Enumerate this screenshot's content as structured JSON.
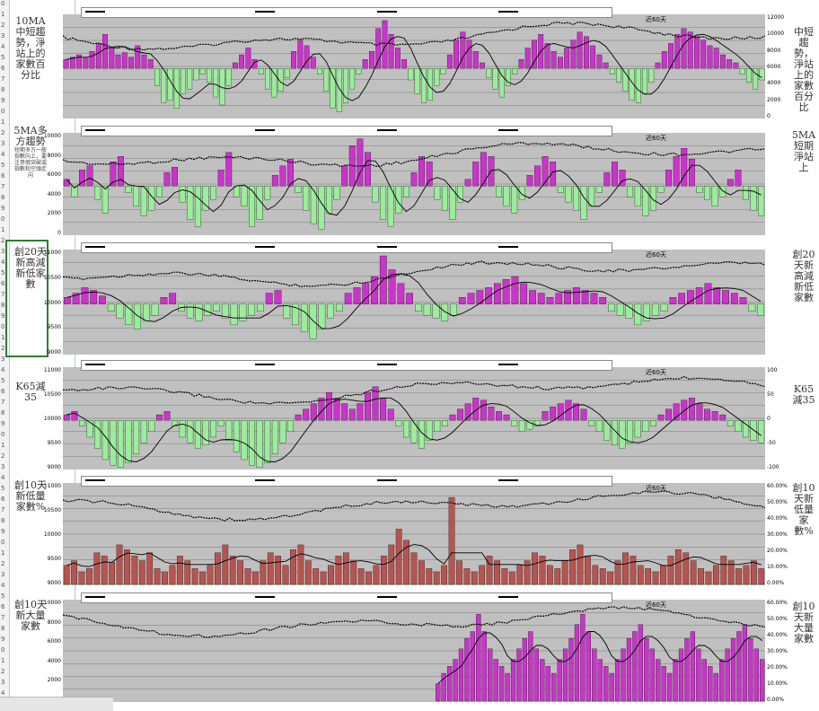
{
  "left_labels": [
    {
      "main": "10MA中短趨勢，淨站上的家數百分比",
      "sub": ""
    },
    {
      "main": "5MA多方趨勢",
      "sub": "短期多方一般指數向上，要注意假突破或指數和空頭走向"
    },
    {
      "main": "創20天新高減新低家數",
      "sub": ""
    },
    {
      "main": "K65減35",
      "sub": ""
    },
    {
      "main": "創10天新低量家數%",
      "sub": ""
    },
    {
      "main": "創10天新大量家數",
      "sub": ""
    }
  ],
  "right_labels": [
    "中短趨勢，淨站上的家數百分比",
    "5MA短期淨站上",
    "創20天新高減新低家數",
    "K65減35",
    "創10天新低量家數%",
    "創10天新大量家數"
  ],
  "period_label": "近60天",
  "chart_data": [
    {
      "type": "bar",
      "title": "",
      "series": [
        {
          "name": "",
          "color": "#cc33cc",
          "negative_color": "#99ee99",
          "values": [
            8,
            10,
            12,
            9,
            15,
            22,
            30,
            18,
            12,
            14,
            10,
            20,
            12,
            8,
            -15,
            -30,
            -28,
            -35,
            -22,
            -18,
            -10,
            -5,
            -12,
            -25,
            -32,
            -15,
            5,
            12,
            18,
            8,
            -5,
            -18,
            -25,
            -20,
            -8,
            15,
            25,
            20,
            10,
            -5,
            -20,
            -35,
            -38,
            -30,
            -18,
            -5,
            8,
            15,
            35,
            42,
            30,
            18,
            8,
            -10,
            -22,
            -30,
            -28,
            -15,
            -5,
            12,
            25,
            32,
            25,
            15,
            5,
            -8,
            -18,
            -25,
            -15,
            -5,
            8,
            18,
            25,
            30,
            22,
            15,
            10,
            18,
            25,
            32,
            28,
            20,
            12,
            5,
            -5,
            -12,
            -20,
            -28,
            -30,
            -22,
            -12,
            5,
            15,
            22,
            30,
            35,
            32,
            28,
            25,
            20,
            18,
            12,
            8,
            5,
            -5,
            -12,
            -18,
            -10
          ]
        }
      ],
      "lines": [
        "ma_fast",
        "ma_slow",
        "index"
      ],
      "ylim_left": [
        0,
        12000
      ],
      "ylim_right": [
        -50,
        50
      ],
      "left_ticks": [],
      "right_ticks": [
        "12000",
        "10000",
        "8000",
        "6000",
        "4000",
        "2000",
        "0"
      ]
    },
    {
      "type": "bar",
      "title": "",
      "series": [
        {
          "name": "",
          "color": "#cc33cc",
          "negative_color": "#99ee99",
          "values": [
            5,
            -8,
            12,
            15,
            -10,
            -20,
            18,
            22,
            -5,
            -15,
            -22,
            -18,
            -8,
            10,
            14,
            -12,
            -25,
            -30,
            -18,
            -10,
            12,
            25,
            -8,
            -15,
            -30,
            -25,
            -10,
            8,
            15,
            20,
            -5,
            -18,
            -28,
            -32,
            -20,
            -10,
            15,
            30,
            35,
            25,
            -12,
            -25,
            -30,
            -20,
            -8,
            10,
            22,
            18,
            -10,
            -18,
            -25,
            -12,
            5,
            18,
            25,
            22,
            -8,
            -15,
            -20,
            -10,
            8,
            15,
            22,
            18,
            -5,
            -12,
            -18,
            -25,
            -15,
            -5,
            10,
            18,
            12,
            -8,
            -15,
            -22,
            -18,
            -5,
            12,
            22,
            28,
            20,
            -5,
            -10,
            -15,
            -8,
            5,
            12,
            -10,
            -18,
            -22
          ]
        }
      ],
      "lines": [
        "ma_fast",
        "ma_slow",
        "index"
      ],
      "ylim_left": [
        0,
        10000
      ],
      "ylim_right": [
        -50,
        50
      ],
      "left_ticks": [
        "10000",
        "8000",
        "6000",
        "4000",
        "2000",
        "0"
      ],
      "right_ticks": []
    },
    {
      "type": "bar",
      "title": "",
      "series": [
        {
          "name": "",
          "color": "#cc33cc",
          "negative_color": "#99ee99",
          "values": [
            5,
            8,
            12,
            10,
            6,
            -5,
            -10,
            -15,
            -18,
            -12,
            -8,
            5,
            8,
            -5,
            -10,
            -12,
            -8,
            -5,
            -10,
            -15,
            -12,
            -8,
            -5,
            8,
            10,
            -10,
            -15,
            -20,
            -25,
            -18,
            -10,
            -5,
            8,
            12,
            15,
            20,
            35,
            25,
            15,
            8,
            -5,
            -8,
            -10,
            -12,
            -8,
            5,
            8,
            10,
            12,
            15,
            18,
            20,
            15,
            10,
            8,
            5,
            8,
            10,
            12,
            10,
            8,
            5,
            -5,
            -8,
            -10,
            -15,
            -12,
            -8,
            -5,
            5,
            8,
            10,
            12,
            15,
            12,
            10,
            8,
            5,
            -5,
            -8
          ]
        }
      ],
      "lines": [
        "ma_fast",
        "ma_slow",
        "index"
      ],
      "ylim_left": [
        9000,
        11500
      ],
      "ylim_right": [
        -100,
        100
      ],
      "left_ticks": [
        "11000",
        "10500",
        "10000",
        "9500",
        "9000"
      ],
      "right_ticks": []
    },
    {
      "type": "bar",
      "title": "",
      "series": [
        {
          "name": "",
          "color": "#cc33cc",
          "negative_color": "#99ee99",
          "values": [
            5,
            8,
            -5,
            -15,
            -25,
            -35,
            -40,
            -42,
            -38,
            -30,
            -20,
            -10,
            5,
            8,
            -5,
            -15,
            -20,
            -25,
            -22,
            -15,
            -5,
            -18,
            -28,
            -35,
            -40,
            -42,
            -38,
            -30,
            -20,
            -10,
            5,
            10,
            15,
            20,
            25,
            20,
            15,
            10,
            15,
            25,
            30,
            20,
            10,
            -5,
            -15,
            -20,
            -25,
            -18,
            -10,
            -5,
            5,
            10,
            15,
            20,
            18,
            12,
            8,
            5,
            -5,
            -10,
            -8,
            -5,
            8,
            12,
            15,
            18,
            15,
            10,
            -5,
            -10,
            -18,
            -22,
            -25,
            -20,
            -15,
            -10,
            -5,
            5,
            10,
            15,
            18,
            20,
            15,
            10,
            8,
            5,
            -5,
            -10,
            -15,
            -18,
            -20
          ]
        }
      ],
      "lines": [
        "ma_fast",
        "index"
      ],
      "ylim_left": [
        9000,
        11500
      ],
      "ylim_right": [
        -100,
        100
      ],
      "left_ticks": [
        "11000",
        "10500",
        "10000",
        "9500",
        "9000"
      ],
      "right_ticks": [
        "100",
        "50",
        "0",
        "-50",
        "-100"
      ]
    },
    {
      "type": "bar",
      "title": "",
      "series": [
        {
          "name": "",
          "color": "#b85450",
          "values": [
            12,
            15,
            8,
            10,
            20,
            18,
            14,
            25,
            22,
            18,
            15,
            20,
            10,
            8,
            12,
            18,
            15,
            10,
            8,
            12,
            20,
            25,
            18,
            15,
            10,
            8,
            15,
            20,
            18,
            12,
            22,
            25,
            15,
            10,
            8,
            12,
            18,
            20,
            15,
            10,
            8,
            12,
            18,
            25,
            35,
            28,
            20,
            15,
            10,
            8,
            12,
            55,
            15,
            10,
            8,
            12,
            18,
            15,
            10,
            8,
            12,
            15,
            20,
            18,
            12,
            10,
            15,
            22,
            25,
            18,
            12,
            10,
            8,
            15,
            20,
            18,
            12,
            10,
            8,
            12,
            18,
            22,
            20,
            15,
            10,
            8,
            12,
            18,
            15,
            10,
            12,
            15,
            10
          ]
        }
      ],
      "lines": [
        "ma",
        "index"
      ],
      "ylim_left": [
        9000,
        11500
      ],
      "ylim_right": [
        0,
        60
      ],
      "left_ticks": [
        "11000",
        "10500",
        "10000",
        "9500",
        "9000"
      ],
      "right_ticks": [
        "60.00%",
        "50.00%",
        "40.00%",
        "30.00%",
        "20.00%",
        "10.00%",
        "0.00%"
      ]
    },
    {
      "type": "bar",
      "title": "",
      "series": [
        {
          "name": "",
          "color": "#cc33cc",
          "values": [
            5,
            8,
            10,
            12,
            15,
            18,
            20,
            25,
            20,
            15,
            12,
            10,
            8,
            12,
            15,
            18,
            20,
            15,
            12,
            10,
            8,
            12,
            15,
            18,
            22,
            25,
            20,
            15,
            12,
            10,
            8,
            12,
            15,
            18,
            20,
            22,
            18,
            15,
            12,
            10,
            8,
            12,
            15,
            18,
            20,
            15,
            12,
            10,
            8,
            12,
            15,
            18,
            20,
            22,
            18,
            15,
            12
          ]
        }
      ],
      "lines": [
        "ma",
        "index"
      ],
      "ylim_left": [
        0,
        12000
      ],
      "ylim_right": [
        0,
        60
      ],
      "left_ticks": [
        "10000",
        "8000",
        "6000",
        "4000",
        "2000",
        "0"
      ],
      "right_ticks": [
        "60.00%",
        "50.00%",
        "40.00%",
        "30.00%",
        "20.00%",
        "10.00%",
        "0.00%"
      ]
    }
  ]
}
